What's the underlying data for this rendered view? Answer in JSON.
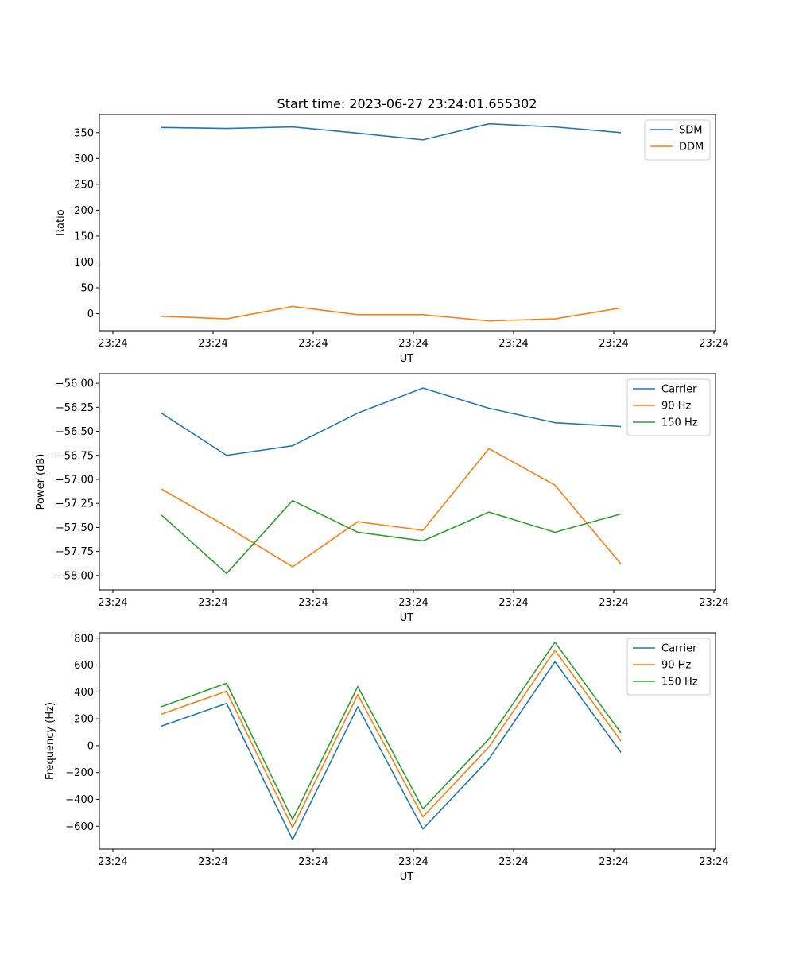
{
  "title": "Start time: 2023-06-27 23:24:01.655302",
  "colors": {
    "blue": "#1f77b4",
    "orange": "#ff7f0e",
    "green": "#2ca02c"
  },
  "x_tick_labels": [
    "23:24",
    "23:24",
    "23:24",
    "23:24",
    "23:24",
    "23:24",
    "23:24"
  ],
  "chart_data": [
    {
      "type": "line",
      "xlabel": "UT",
      "ylabel": "Ratio",
      "ylim": [
        -33,
        385
      ],
      "yticks": [
        0,
        50,
        100,
        150,
        200,
        250,
        300,
        350
      ],
      "ytick_labels": [
        "0",
        "50",
        "100",
        "150",
        "200",
        "250",
        "300",
        "350"
      ],
      "legend": "top-right",
      "series": [
        {
          "name": "SDM",
          "color": "#1f77b4",
          "values": [
            360,
            358,
            361,
            349,
            336,
            367,
            361,
            350
          ]
        },
        {
          "name": "DDM",
          "color": "#ff7f0e",
          "values": [
            -5,
            -10,
            14,
            -2,
            -2,
            -14,
            -10,
            11
          ]
        }
      ]
    },
    {
      "type": "line",
      "xlabel": "UT",
      "ylabel": "Power (dB)",
      "ylim": [
        -58.15,
        -55.9
      ],
      "yticks": [
        -58.0,
        -57.75,
        -57.5,
        -57.25,
        -57.0,
        -56.75,
        -56.5,
        -56.25,
        -56.0
      ],
      "ytick_labels": [
        "−58.00",
        "−57.75",
        "−57.50",
        "−57.25",
        "−57.00",
        "−56.75",
        "−56.50",
        "−56.25",
        "−56.00"
      ],
      "legend": "top-right",
      "series": [
        {
          "name": "Carrier",
          "color": "#1f77b4",
          "values": [
            -56.31,
            -56.75,
            -56.65,
            -56.31,
            -56.05,
            -56.26,
            -56.41,
            -56.45
          ]
        },
        {
          "name": "90 Hz",
          "color": "#ff7f0e",
          "values": [
            -57.1,
            -57.49,
            -57.91,
            -57.44,
            -57.53,
            -56.68,
            -57.06,
            -57.88
          ]
        },
        {
          "name": "150 Hz",
          "color": "#2ca02c",
          "values": [
            -57.37,
            -57.98,
            -57.22,
            -57.55,
            -57.64,
            -57.34,
            -57.55,
            -57.36
          ]
        }
      ]
    },
    {
      "type": "line",
      "xlabel": "UT",
      "ylabel": "Frequency (Hz)",
      "ylim": [
        -770,
        840
      ],
      "yticks": [
        -600,
        -400,
        -200,
        0,
        200,
        400,
        600,
        800
      ],
      "ytick_labels": [
        "−600",
        "−400",
        "−200",
        "0",
        "200",
        "400",
        "600",
        "800"
      ],
      "legend": "top-right",
      "series": [
        {
          "name": "Carrier",
          "color": "#1f77b4",
          "values": [
            145,
            315,
            -700,
            290,
            -620,
            -100,
            625,
            -50
          ]
        },
        {
          "name": "90 Hz",
          "color": "#ff7f0e",
          "values": [
            235,
            405,
            -610,
            380,
            -530,
            -10,
            710,
            35
          ]
        },
        {
          "name": "150 Hz",
          "color": "#2ca02c",
          "values": [
            290,
            465,
            -550,
            440,
            -470,
            50,
            770,
            95
          ]
        }
      ]
    }
  ]
}
